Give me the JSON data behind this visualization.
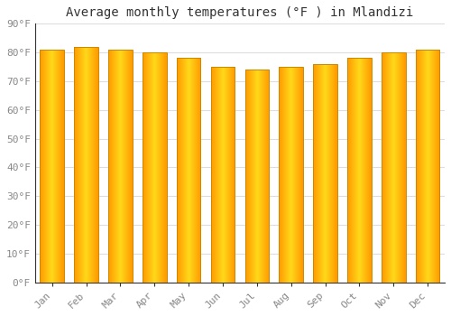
{
  "title": "Average monthly temperatures (°F ) in Mlandizi",
  "months": [
    "Jan",
    "Feb",
    "Mar",
    "Apr",
    "May",
    "Jun",
    "Jul",
    "Aug",
    "Sep",
    "Oct",
    "Nov",
    "Dec"
  ],
  "values": [
    81,
    82,
    81,
    80,
    78,
    75,
    74,
    75,
    76,
    78,
    80,
    81
  ],
  "ylim": [
    0,
    90
  ],
  "yticks": [
    0,
    10,
    20,
    30,
    40,
    50,
    60,
    70,
    80,
    90
  ],
  "ytick_labels": [
    "0°F",
    "10°F",
    "20°F",
    "30°F",
    "40°F",
    "50°F",
    "60°F",
    "70°F",
    "80°F",
    "90°F"
  ],
  "bar_color": "#FFA500",
  "bar_edge_color": "#CC8800",
  "background_color": "#FFFFFF",
  "grid_color": "#DDDDDD",
  "text_color": "#888888",
  "title_color": "#333333",
  "title_fontsize": 10,
  "tick_fontsize": 8,
  "bar_width": 0.7
}
